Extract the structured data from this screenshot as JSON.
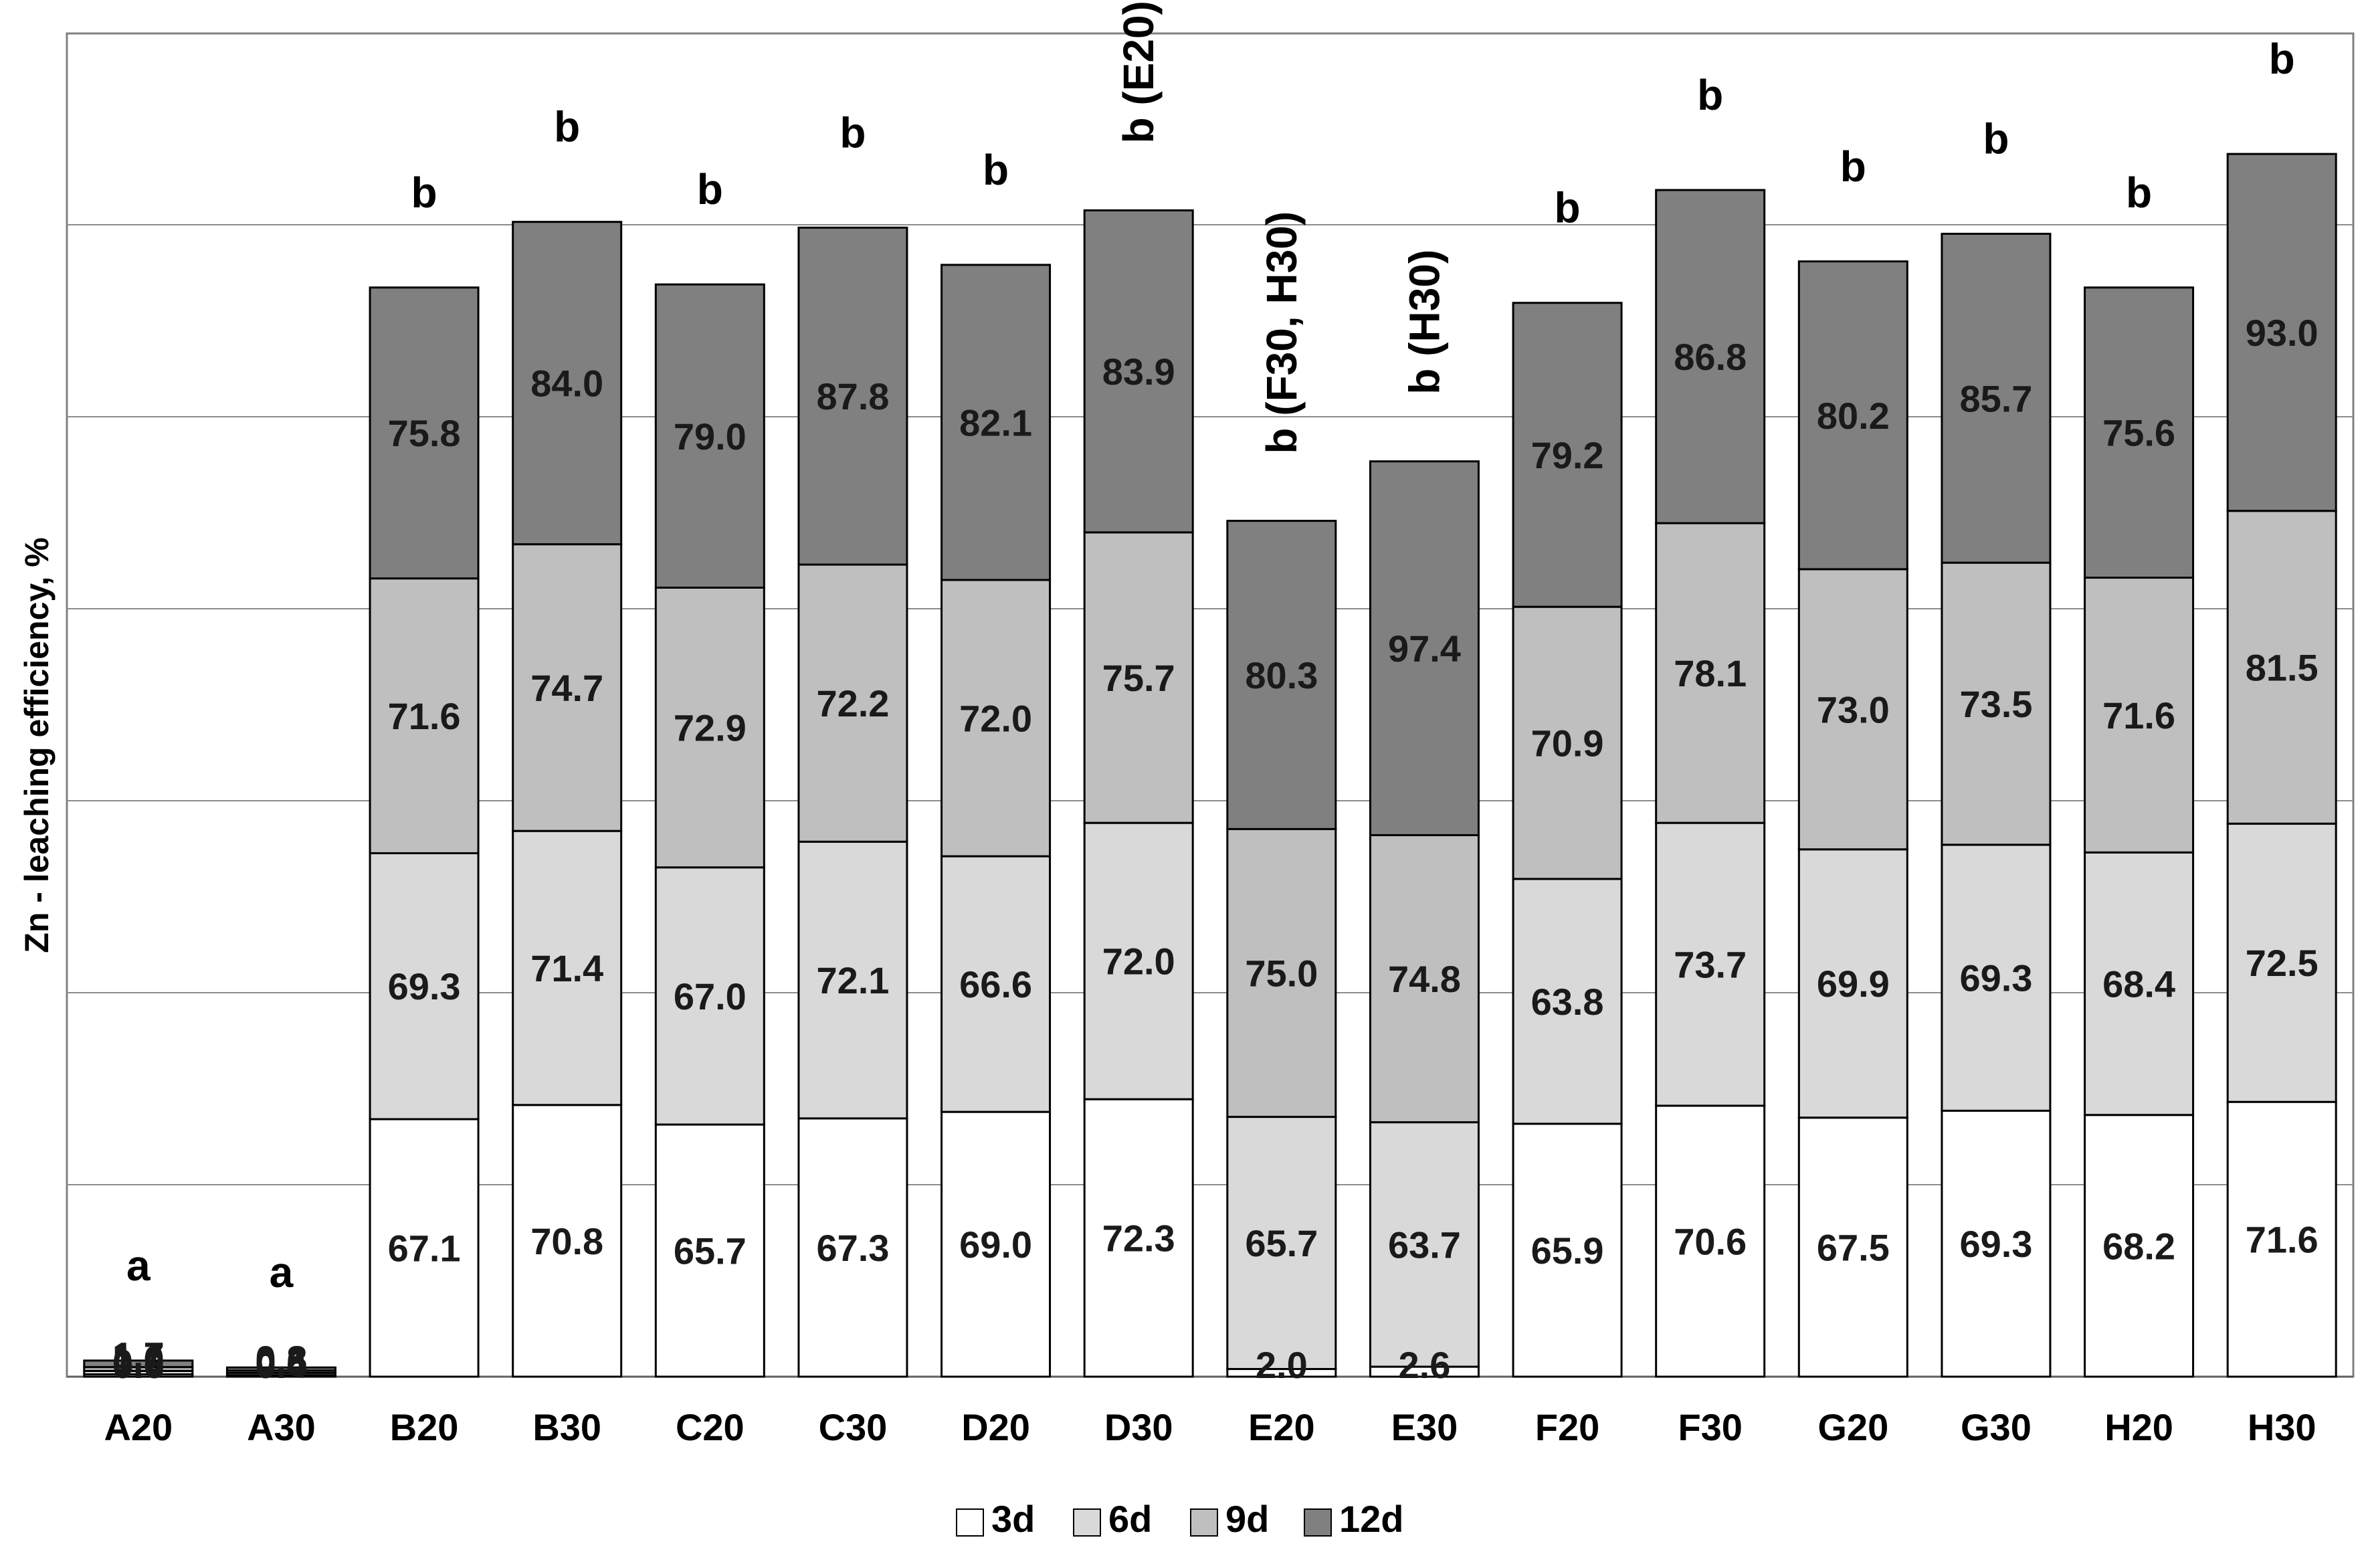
{
  "chart_data": {
    "type": "bar",
    "stacked": true,
    "title": "",
    "xlabel": "",
    "ylabel": "Zn - leaching efficiency, %",
    "grid": true,
    "categories": [
      "A20",
      "A30",
      "B20",
      "B30",
      "C20",
      "C30",
      "D20",
      "D30",
      "E20",
      "E30",
      "F20",
      "F30",
      "G20",
      "G30",
      "H20",
      "H30"
    ],
    "series": [
      {
        "name": "3d",
        "color": "#ffffff",
        "values": [
          0.6,
          0.4,
          67.1,
          70.8,
          65.7,
          67.3,
          69.0,
          72.3,
          2.0,
          2.6,
          65.9,
          70.6,
          67.5,
          69.3,
          68.2,
          71.6
        ]
      },
      {
        "name": "6d",
        "color": "#d9d9d9",
        "values": [
          0.9,
          0.6,
          69.3,
          71.4,
          67.0,
          72.1,
          66.6,
          72.0,
          65.7,
          63.7,
          63.8,
          73.7,
          69.9,
          69.3,
          68.4,
          72.5
        ]
      },
      {
        "name": "9d",
        "color": "#bfbfbf",
        "values": [
          1.0,
          0.6,
          71.6,
          74.7,
          72.9,
          72.2,
          72.0,
          75.7,
          75.0,
          74.8,
          70.9,
          78.1,
          73.0,
          73.5,
          71.6,
          81.5
        ]
      },
      {
        "name": "12d",
        "color": "#808080",
        "values": [
          1.7,
          0.8,
          75.8,
          84.0,
          79.0,
          87.8,
          82.1,
          83.9,
          80.3,
          97.4,
          79.2,
          86.8,
          80.2,
          85.7,
          75.6,
          93.0
        ]
      }
    ],
    "data_labels": [
      [
        "0.6",
        "0.4",
        "67.1",
        "70.8",
        "65.7",
        "67.3",
        "69.0",
        "72.3",
        "2.0",
        "2.6",
        "65.9",
        "70.6",
        "67.5",
        "69.3",
        "68.2",
        "71.6"
      ],
      [
        "0.9",
        "0.6",
        "69.3",
        "71.4",
        "67.0",
        "72.1",
        "66.6",
        "72.0",
        "65.7",
        "63.7",
        "63.8",
        "73.7",
        "69.9",
        "69.3",
        "68.4",
        "72.5"
      ],
      [
        "1.0",
        "0.6",
        "71.6",
        "74.7",
        "72.9",
        "72.2",
        "72.0",
        "75.7",
        "75.0",
        "74.8",
        "70.9",
        "78.1",
        "73.0",
        "73.5",
        "71.6",
        "81.5"
      ],
      [
        "1.7",
        "0.8",
        "75.8",
        "84.0",
        "79.0",
        "87.8",
        "82.1",
        "83.9",
        "80.3",
        "97.4",
        "79.2",
        "86.8",
        "80.2",
        "85.7",
        "75.6",
        "93.0"
      ]
    ],
    "significance_labels": [
      "a",
      "a",
      "b",
      "b",
      "b",
      "b",
      "b",
      "b (E20)",
      "b (F30, H30)",
      "b (H30)",
      "b",
      "b",
      "b",
      "b",
      "b",
      "b"
    ],
    "legend": [
      "3d",
      "6d",
      "9d",
      "12d"
    ],
    "legend_position": "bottom-center",
    "ylim": [
      0,
      350
    ]
  }
}
